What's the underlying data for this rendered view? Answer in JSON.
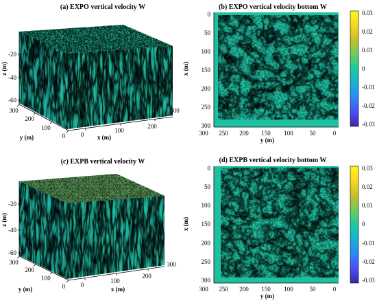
{
  "colormap": [
    "#3e26a8",
    "#4850f5",
    "#2e87f7",
    "#16b3d0",
    "#1fc8a1",
    "#6ecb5b",
    "#c5bf2c",
    "#fbd525",
    "#f9fb15"
  ],
  "chart_data": [
    {
      "type": "heatmap",
      "title": "(a) EXPO vertical velocity W",
      "view": "3d-cube",
      "xlabel": "x (m)",
      "ylabel": "y (m)",
      "zlabel": "z (m)",
      "x_ticks": [
        "0",
        "100",
        "200",
        "300"
      ],
      "y_ticks": [
        "0",
        "100",
        "200",
        "300"
      ],
      "z_ticks": [
        "-20",
        "-40",
        "-60"
      ],
      "xlim": [
        0,
        300
      ],
      "ylim": [
        0,
        300
      ],
      "zlim": [
        -60,
        0
      ],
      "grid": false,
      "top_face_texture": "fine"
    },
    {
      "type": "heatmap",
      "title": "(b) EXPO vertical velocity bottom W",
      "view": "top",
      "xlabel": "y (m)",
      "ylabel": "x (m)",
      "x_ticks": [
        "300",
        "250",
        "200",
        "150",
        "100",
        "50",
        "0"
      ],
      "y_ticks": [
        "0",
        "50",
        "100",
        "150",
        "200",
        "250",
        "300"
      ],
      "xlim": [
        300,
        0
      ],
      "ylim": [
        0,
        300
      ],
      "colorbar": {
        "min": -0.03,
        "max": 0.03,
        "ticks": [
          "0.03",
          "0.02",
          "0.01",
          "0",
          "-0.01",
          "-0.02",
          "-0.03"
        ],
        "placement": "right"
      },
      "grid": false
    },
    {
      "type": "heatmap",
      "title": "(c) EXPB vertical velocity W",
      "view": "3d-cube",
      "xlabel": "x (m)",
      "ylabel": "y (m)",
      "zlabel": "z (m)",
      "x_ticks": [
        "0",
        "100",
        "200",
        "300"
      ],
      "y_ticks": [
        "0",
        "100",
        "200",
        "300"
      ],
      "z_ticks": [
        "-20",
        "-40",
        "-60"
      ],
      "xlim": [
        0,
        300
      ],
      "ylim": [
        0,
        300
      ],
      "zlim": [
        -60,
        0
      ],
      "grid": false,
      "top_face_texture": "very-fine"
    },
    {
      "type": "heatmap",
      "title": "(d) EXPB vertical velocity bottom W",
      "view": "top",
      "xlabel": "y (m)",
      "ylabel": "x (m)",
      "x_ticks": [
        "300",
        "250",
        "200",
        "150",
        "100",
        "50",
        "0"
      ],
      "y_ticks": [
        "0",
        "50",
        "100",
        "150",
        "200",
        "250",
        "300"
      ],
      "xlim": [
        300,
        0
      ],
      "ylim": [
        0,
        300
      ],
      "colorbar": {
        "min": -0.03,
        "max": 0.03,
        "ticks": [
          "0.03",
          "0.02",
          "0.01",
          "0",
          "-0.01",
          "-0.02",
          "-0.03"
        ],
        "placement": "right"
      },
      "grid": false
    }
  ]
}
